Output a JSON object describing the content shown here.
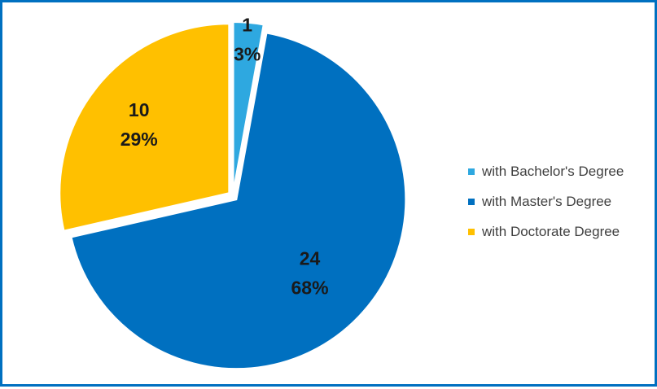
{
  "chart_data": {
    "type": "pie",
    "title": "",
    "series": [
      {
        "categories": [
          "with Bachelor's Degree",
          "with Master's Degree",
          "with Doctorate Degree"
        ],
        "values": [
          1,
          24,
          10
        ],
        "percent_labels": [
          "3%",
          "68%",
          "29%"
        ],
        "colors": [
          "#2ea8e0",
          "#0070c0",
          "#ffc000"
        ]
      }
    ],
    "start_angle_deg": 0,
    "direction": "clockwise",
    "exploded": true,
    "data_labels": "value and percentage",
    "legend": "right"
  }
}
